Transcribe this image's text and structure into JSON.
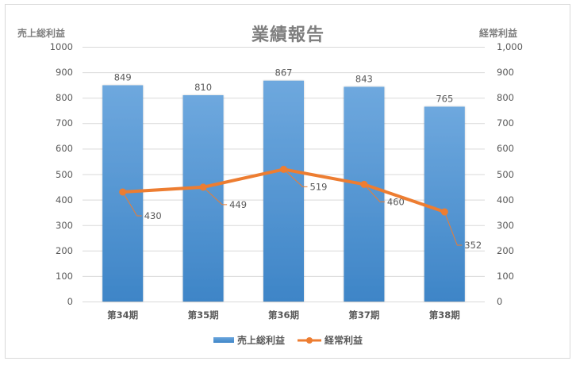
{
  "chart": {
    "title": "業績報告",
    "y_left_title": "売上総利益",
    "y_right_title": "経常利益",
    "y_left_ticks": [
      "1000",
      "900",
      "800",
      "700",
      "600",
      "500",
      "400",
      "300",
      "200",
      "100",
      "0"
    ],
    "y_right_ticks": [
      "1,000",
      "900",
      "800",
      "700",
      "600",
      "500",
      "400",
      "300",
      "200",
      "100",
      "0"
    ],
    "categories": [
      "第34期",
      "第35期",
      "第36期",
      "第37期",
      "第38期"
    ],
    "legend": {
      "bar_label": "売上総利益",
      "line_label": "経常利益"
    },
    "colors": {
      "bar_top": "#6ea8de",
      "bar_bottom": "#3e85c7",
      "line": "#ed7d31",
      "grid": "#d9d9d9",
      "text": "#595959",
      "title": "#7f7f7f"
    }
  },
  "chart_data": {
    "type": "bar+line",
    "title": "業績報告",
    "categories": [
      "第34期",
      "第35期",
      "第36期",
      "第37期",
      "第38期"
    ],
    "series": [
      {
        "name": "売上総利益",
        "type": "bar",
        "axis": "left",
        "values": [
          849,
          810,
          867,
          843,
          765
        ]
      },
      {
        "name": "経常利益",
        "type": "line",
        "axis": "right",
        "values": [
          430,
          449,
          519,
          460,
          352
        ]
      }
    ],
    "ylabel_left": "売上総利益",
    "ylabel_right": "経常利益",
    "ylim_left": [
      0,
      1000
    ],
    "ylim_right": [
      0,
      1000
    ],
    "ytick_step": 100,
    "grid": true,
    "legend_position": "bottom",
    "data_labels": true
  }
}
